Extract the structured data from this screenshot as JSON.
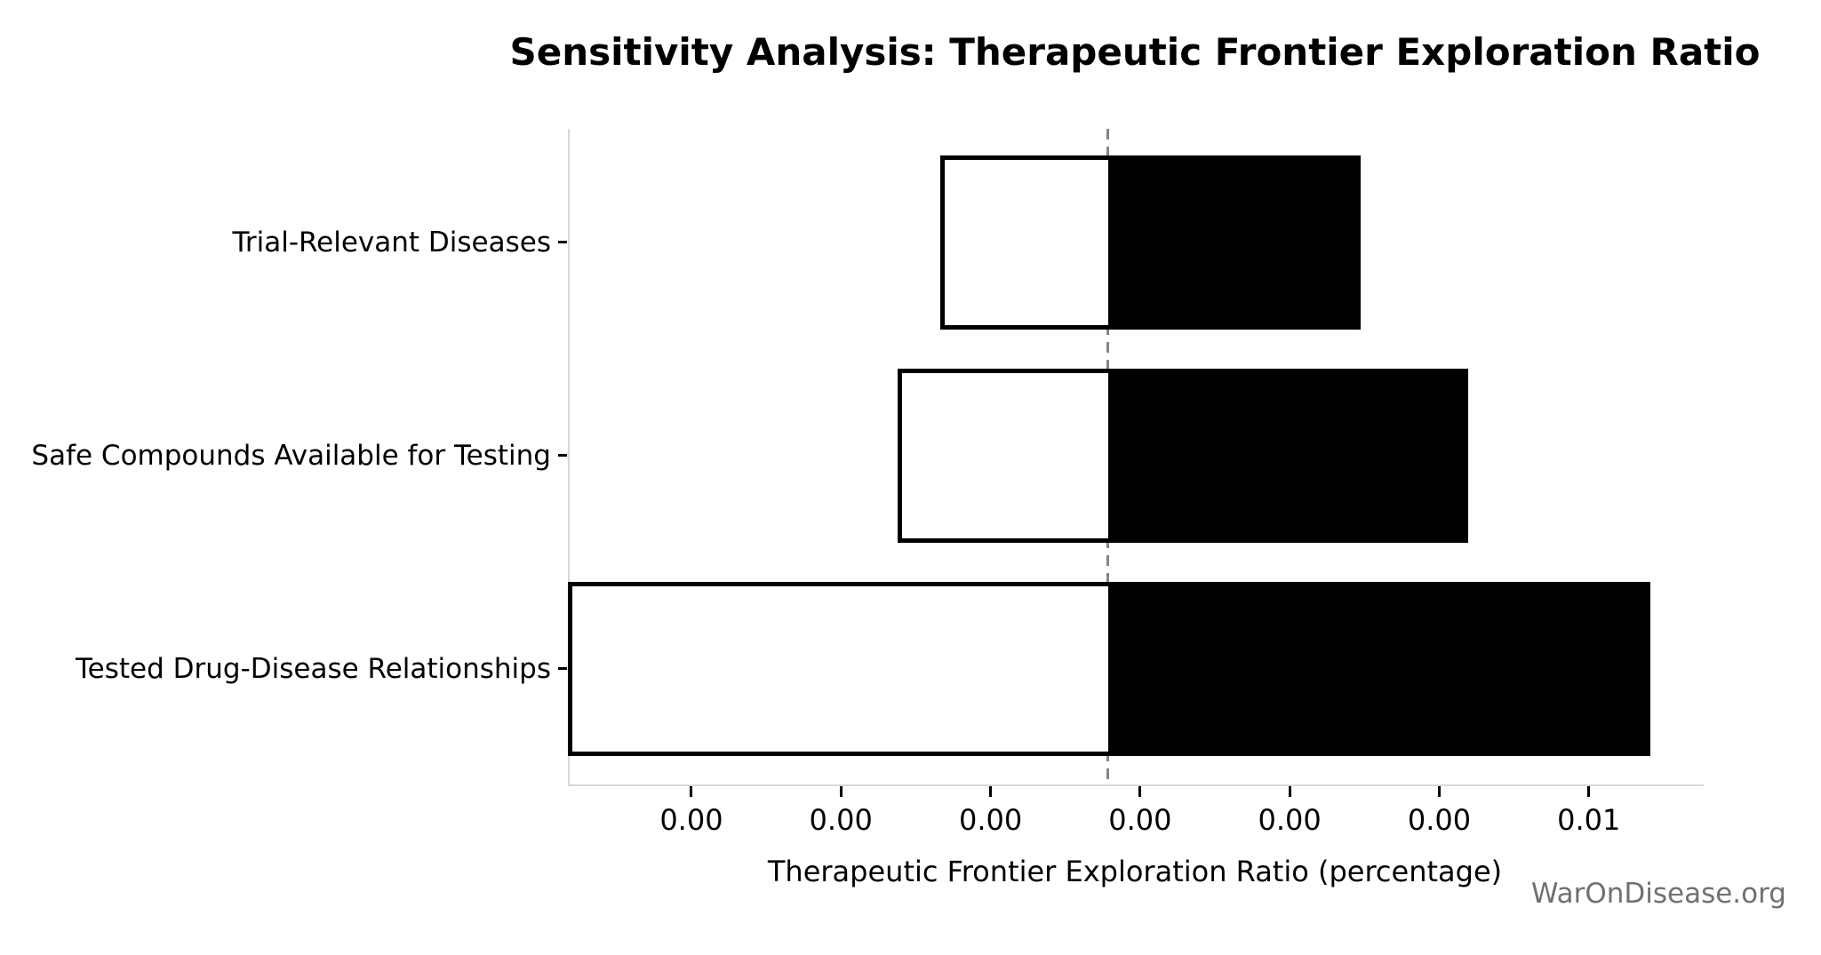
{
  "chart_data": {
    "type": "bar",
    "orientation": "horizontal",
    "subtype": "tornado-sensitivity",
    "title": "Sensitivity Analysis: Therapeutic Frontier Exploration Ratio",
    "xlabel": "Therapeutic Frontier Exploration Ratio (percentage)",
    "watermark": "WarOnDisease.org",
    "grid": false,
    "legend": "none",
    "xlim": [
      -0.000688,
      0.00563
    ],
    "baseline": 0.002322,
    "x_ticks": [
      {
        "value": 0.0,
        "label": "0.00"
      },
      {
        "value": 0.000833,
        "label": "0.00"
      },
      {
        "value": 0.001667,
        "label": "0.00"
      },
      {
        "value": 0.0025,
        "label": "0.00"
      },
      {
        "value": 0.003333,
        "label": "0.00"
      },
      {
        "value": 0.004167,
        "label": "0.00"
      },
      {
        "value": 0.005,
        "label": "0.01"
      }
    ],
    "categories": [
      "Trial-Relevant Diseases",
      "Safe Compounds Available for Testing",
      "Tested Drug-Disease Relationships"
    ],
    "bars": [
      {
        "label": "Trial-Relevant Diseases",
        "low": 0.001386,
        "high": 0.003729
      },
      {
        "label": "Safe Compounds Available for Testing",
        "low": 0.001149,
        "high": 0.004328
      },
      {
        "label": "Tested Drug-Disease Relationships",
        "low": -0.000688,
        "high": 0.005343
      }
    ],
    "colors": {
      "bar_low_fill": "#ffffff",
      "bar_high_fill": "#000000",
      "bar_edge": "#000000",
      "baseline_line": "#858585",
      "spine": "#d8d8d8",
      "tick": "#000000",
      "watermark": "#707070"
    }
  }
}
